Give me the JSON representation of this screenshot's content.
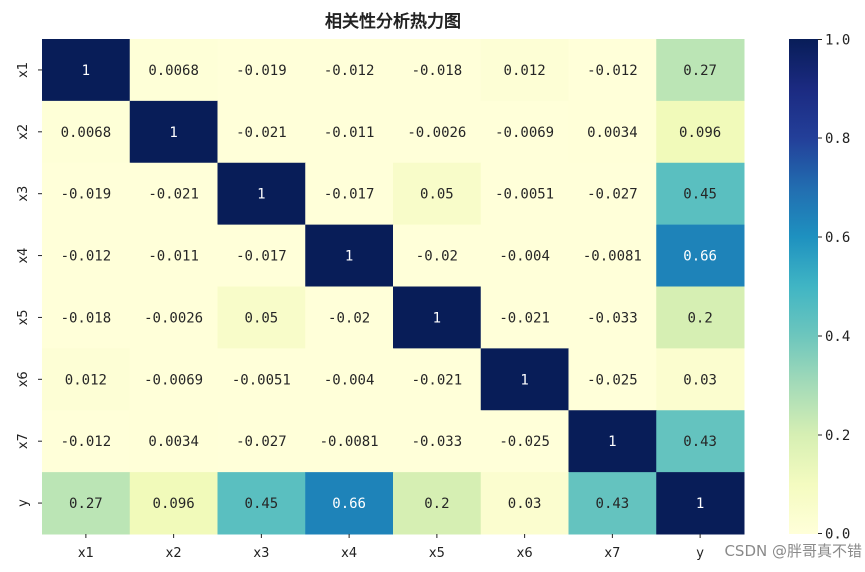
{
  "chart_data": {
    "type": "heatmap",
    "title": "相关性分析热力图",
    "x_labels": [
      "x1",
      "x2",
      "x3",
      "x4",
      "x5",
      "x6",
      "x7",
      "y"
    ],
    "y_labels": [
      "x1",
      "x2",
      "x3",
      "x4",
      "x5",
      "x6",
      "x7",
      "y"
    ],
    "cell_labels": [
      [
        "1",
        "0.0068",
        "-0.019",
        "-0.012",
        "-0.018",
        "0.012",
        "-0.012",
        "0.27"
      ],
      [
        "0.0068",
        "1",
        "-0.021",
        "-0.011",
        "-0.0026",
        "-0.0069",
        "0.0034",
        "0.096"
      ],
      [
        "-0.019",
        "-0.021",
        "1",
        "-0.017",
        "0.05",
        "-0.0051",
        "-0.027",
        "0.45"
      ],
      [
        "-0.012",
        "-0.011",
        "-0.017",
        "1",
        "-0.02",
        "-0.004",
        "-0.0081",
        "0.66"
      ],
      [
        "-0.018",
        "-0.0026",
        "0.05",
        "-0.02",
        "1",
        "-0.021",
        "-0.033",
        "0.2"
      ],
      [
        "0.012",
        "-0.0069",
        "-0.0051",
        "-0.004",
        "-0.021",
        "1",
        "-0.025",
        "0.03"
      ],
      [
        "-0.012",
        "0.0034",
        "-0.027",
        "-0.0081",
        "-0.033",
        "-0.025",
        "1",
        "0.43"
      ],
      [
        "0.27",
        "0.096",
        "0.45",
        "0.66",
        "0.2",
        "0.03",
        "0.43",
        "1"
      ]
    ],
    "colormap": "YlGnBu",
    "colorbar": {
      "range": [
        0.0,
        1.0
      ],
      "ticks": [
        "0.0",
        "0.2",
        "0.4",
        "0.6",
        "0.8",
        "1.0"
      ]
    }
  },
  "watermark": "CSDN @胖哥真不错"
}
